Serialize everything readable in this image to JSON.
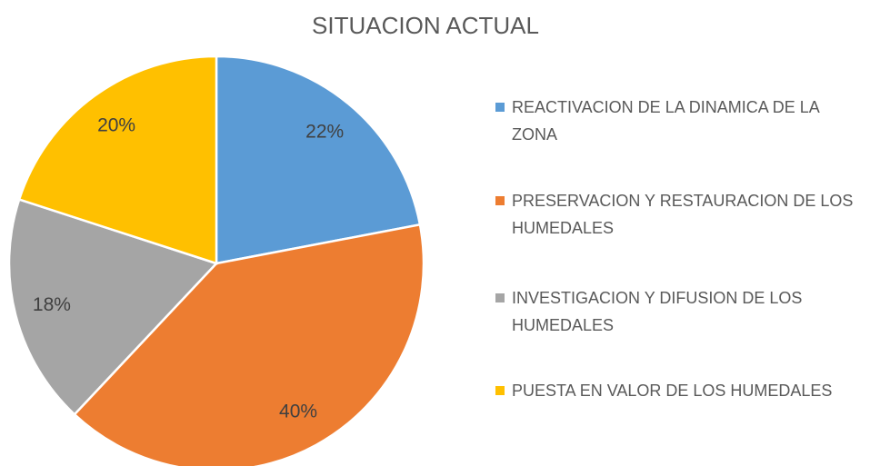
{
  "chart_data": {
    "type": "pie",
    "title": "SITUACION ACTUAL",
    "categories": [
      "REACTIVACION DE LA DINAMICA DE LA ZONA",
      "PRESERVACION Y RESTAURACION DE LOS HUMEDALES",
      "INVESTIGACION Y DIFUSION DE LOS HUMEDALES",
      "PUESTA EN VALOR DE LOS HUMEDALES"
    ],
    "values": [
      22,
      40,
      18,
      20
    ],
    "value_labels": [
      "22%",
      "40%",
      "18%",
      "20%"
    ],
    "colors": [
      "#5b9bd5",
      "#ed7d31",
      "#a5a5a5",
      "#ffc000"
    ],
    "legend": "right"
  }
}
